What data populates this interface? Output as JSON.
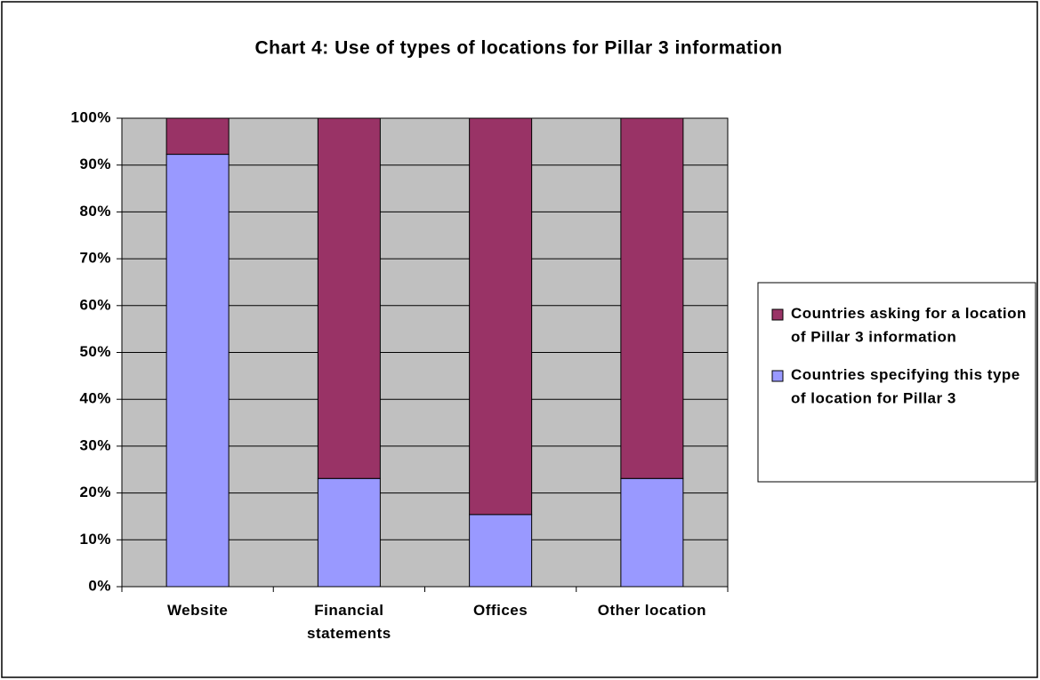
{
  "chart_data": {
    "type": "stacked_bar",
    "title": "Chart 4: Use of types of locations for Pillar 3 information",
    "categories": [
      "Website",
      "Financial statements",
      "Offices",
      "Other location"
    ],
    "series": [
      {
        "name": "Countries specifying this type of location for Pillar 3",
        "color": "#9999ff",
        "values": [
          92.3,
          23.1,
          15.4,
          23.1
        ]
      },
      {
        "name": "Countries asking for a location of Pillar 3 information",
        "color": "#993366",
        "values": [
          7.7,
          76.9,
          84.6,
          76.9
        ]
      }
    ],
    "ylim": [
      0,
      100
    ],
    "yticks": [
      {
        "value": 0,
        "label": "0%"
      },
      {
        "value": 10,
        "label": "10%"
      },
      {
        "value": 20,
        "label": "20%"
      },
      {
        "value": 30,
        "label": "30%"
      },
      {
        "value": 40,
        "label": "40%"
      },
      {
        "value": 50,
        "label": "50%"
      },
      {
        "value": 60,
        "label": "60%"
      },
      {
        "value": 70,
        "label": "70%"
      },
      {
        "value": 80,
        "label": "80%"
      },
      {
        "value": 90,
        "label": "90%"
      },
      {
        "value": 100,
        "label": "100%"
      }
    ],
    "grid": true,
    "legend": "right",
    "plot_background": "#c0c0c0"
  }
}
